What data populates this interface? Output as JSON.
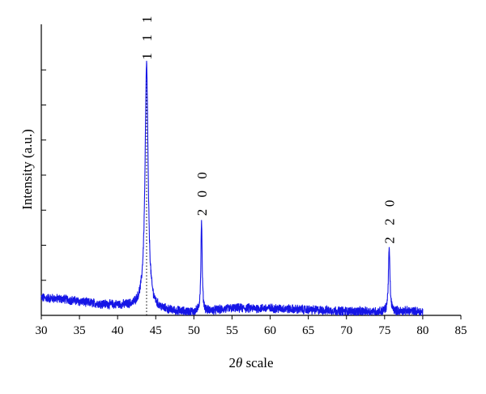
{
  "chart_data": {
    "type": "line",
    "title": "",
    "xlabel": {
      "prefix": "2",
      "symbol": "θ",
      "suffix": " scale"
    },
    "ylabel": "Intensity (a.u.)",
    "xlim": [
      30,
      85
    ],
    "ylim": [
      0,
      8.3
    ],
    "xticks": [
      30,
      35,
      40,
      45,
      50,
      55,
      60,
      65,
      70,
      75,
      80,
      85
    ],
    "yticks": [
      0,
      1,
      2,
      3,
      4,
      5,
      6,
      7
    ],
    "ytick_labels_shown": false,
    "grid": false,
    "legend": "none",
    "color": "#1515e6",
    "noise_amplitude": 0.11,
    "baseline": [
      [
        30,
        0.5
      ],
      [
        33,
        0.46
      ],
      [
        36,
        0.36
      ],
      [
        39,
        0.3
      ],
      [
        42,
        0.26
      ],
      [
        43.3,
        0.3
      ],
      [
        44.5,
        0.18
      ],
      [
        47,
        0.12
      ],
      [
        50,
        0.08
      ],
      [
        52,
        0.12
      ],
      [
        55,
        0.2
      ],
      [
        60,
        0.2
      ],
      [
        65,
        0.16
      ],
      [
        70,
        0.12
      ],
      [
        75,
        0.1
      ],
      [
        78,
        0.12
      ],
      [
        80,
        0.1
      ]
    ],
    "peaks": [
      {
        "label": "1 1 1",
        "x": 43.8,
        "height": 6.9,
        "width": 0.24
      },
      {
        "label": "2 0 0",
        "x": 51.0,
        "height": 2.6,
        "width": 0.1
      },
      {
        "label": "2 2 0",
        "x": 75.6,
        "height": 1.8,
        "width": 0.12
      }
    ],
    "reference_line_x": 43.8
  }
}
